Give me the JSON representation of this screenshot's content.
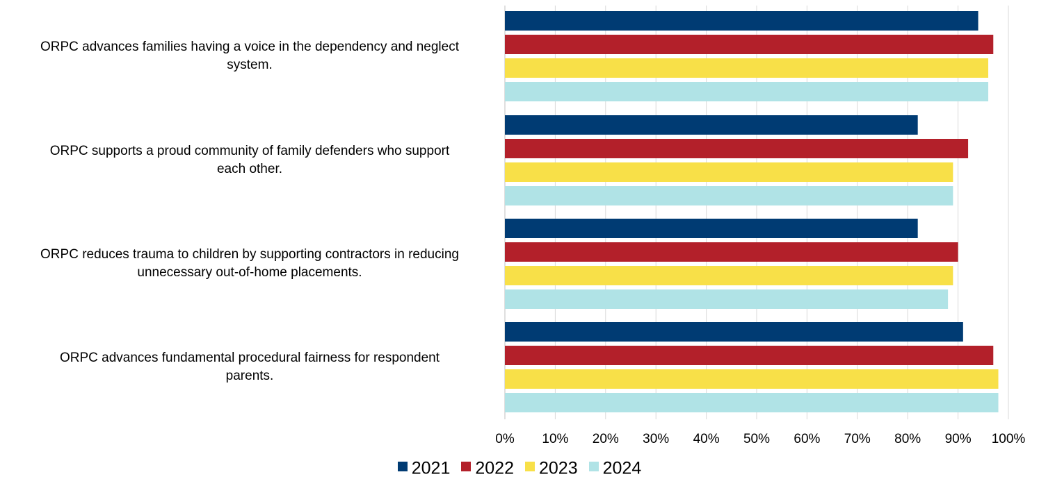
{
  "chart_data": {
    "type": "bar",
    "orientation": "horizontal",
    "categories": [
      "ORPC advances families having a voice in the dependency and neglect system.",
      "ORPC supports a proud community of family defenders who support each other.",
      "ORPC reduces trauma to children by supporting contractors in reducing unnecessary out-of-home placements.",
      "ORPC advances fundamental procedural fairness for respondent parents."
    ],
    "category_lines": [
      [
        "ORPC advances families having a voice in the dependency and neglect",
        "system."
      ],
      [
        "ORPC supports a proud community of family defenders who support",
        "each other."
      ],
      [
        "ORPC reduces trauma to children by supporting contractors in reducing",
        "unnecessary out-of-home placements."
      ],
      [
        "ORPC advances fundamental procedural fairness for respondent",
        "parents."
      ]
    ],
    "series": [
      {
        "name": "2021",
        "color": "#003b73",
        "values": [
          94,
          82,
          82,
          91
        ]
      },
      {
        "name": "2022",
        "color": "#b3202a",
        "values": [
          97,
          92,
          90,
          97
        ]
      },
      {
        "name": "2023",
        "color": "#f8e048",
        "values": [
          96,
          89,
          89,
          98
        ]
      },
      {
        "name": "2024",
        "color": "#b0e3e6",
        "values": [
          96,
          89,
          88,
          98
        ]
      }
    ],
    "xlim": [
      0,
      100
    ],
    "xticks": [
      "0%",
      "10%",
      "20%",
      "30%",
      "40%",
      "50%",
      "60%",
      "70%",
      "80%",
      "90%",
      "100%"
    ],
    "grid": "vertical",
    "legend_position": "bottom"
  }
}
